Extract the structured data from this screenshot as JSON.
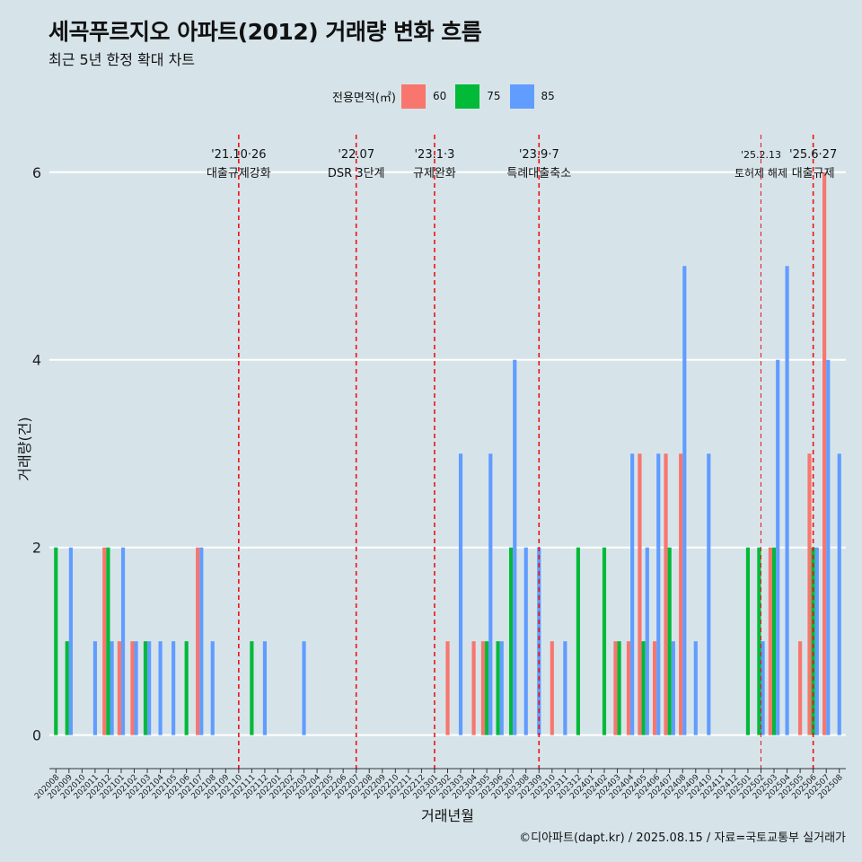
{
  "chart_data": {
    "type": "bar",
    "title": "세곡푸르지오 아파트(2012) 거래량 변화 흐름",
    "subtitle": "최근 5년 한정 확대 차트",
    "xlabel": "거래년월",
    "ylabel": "거래량(건)",
    "ylim": [
      -0.3,
      6.4
    ],
    "y_ticks": [
      0,
      2,
      4,
      6
    ],
    "grid": true,
    "legend": {
      "title": "전용면적(㎡)",
      "position": "top",
      "entries": [
        "60",
        "75",
        "85"
      ]
    },
    "series_colors": {
      "60": "#f8766d",
      "75": "#00ba38",
      "85": "#619cff"
    },
    "categories": [
      "202008",
      "202009",
      "202010",
      "202011",
      "202012",
      "202101",
      "202102",
      "202103",
      "202104",
      "202105",
      "202106",
      "202107",
      "202108",
      "202109",
      "202110",
      "202111",
      "202112",
      "202201",
      "202202",
      "202203",
      "202204",
      "202205",
      "202206",
      "202207",
      "202208",
      "202209",
      "202210",
      "202211",
      "202212",
      "202301",
      "202302",
      "202303",
      "202304",
      "202305",
      "202306",
      "202307",
      "202308",
      "202309",
      "202310",
      "202311",
      "202312",
      "202401",
      "202402",
      "202403",
      "202404",
      "202405",
      "202406",
      "202407",
      "202408",
      "202409",
      "202410",
      "202411",
      "202412",
      "202501",
      "202502",
      "202503",
      "202504",
      "202505",
      "202506",
      "202507",
      "202508"
    ],
    "series": [
      {
        "name": "60",
        "values": [
          0,
          0,
          0,
          0,
          2,
          1,
          1,
          0,
          0,
          0,
          0,
          2,
          0,
          0,
          0,
          0,
          0,
          0,
          0,
          0,
          0,
          0,
          0,
          0,
          0,
          0,
          0,
          0,
          0,
          0,
          1,
          0,
          1,
          1,
          0,
          0,
          0,
          0,
          1,
          0,
          0,
          0,
          0,
          1,
          1,
          3,
          1,
          3,
          3,
          0,
          0,
          0,
          0,
          0,
          0,
          2,
          0,
          1,
          3,
          6,
          0
        ]
      },
      {
        "name": "75",
        "values": [
          2,
          1,
          0,
          0,
          2,
          0,
          0,
          1,
          0,
          0,
          1,
          0,
          0,
          0,
          0,
          1,
          0,
          0,
          0,
          0,
          0,
          0,
          0,
          0,
          0,
          0,
          0,
          0,
          0,
          0,
          0,
          0,
          0,
          1,
          1,
          2,
          0,
          0,
          0,
          0,
          2,
          0,
          2,
          1,
          0,
          1,
          0,
          2,
          0,
          0,
          0,
          0,
          0,
          2,
          2,
          2,
          0,
          0,
          2,
          0,
          0
        ]
      },
      {
        "name": "85",
        "values": [
          0,
          2,
          0,
          1,
          1,
          2,
          1,
          1,
          1,
          1,
          0,
          2,
          1,
          0,
          0,
          0,
          1,
          0,
          0,
          1,
          0,
          0,
          0,
          0,
          0,
          0,
          0,
          0,
          0,
          0,
          0,
          3,
          0,
          3,
          1,
          4,
          2,
          2,
          0,
          1,
          0,
          0,
          0,
          0,
          3,
          2,
          3,
          1,
          5,
          1,
          3,
          0,
          0,
          0,
          1,
          4,
          5,
          0,
          2,
          4,
          3
        ]
      }
    ],
    "annotations": [
      {
        "category": "202110",
        "date": "'21.10·26",
        "label": "대출규제강화"
      },
      {
        "category": "202207",
        "date": "'22.07",
        "label": "DSR 3단계"
      },
      {
        "category": "202301",
        "date": "'23.1·3",
        "label": "규제완화"
      },
      {
        "category": "202309",
        "date": "'23.9·7",
        "label": "특례대출축소"
      },
      {
        "category": "202502",
        "date": "'25.2.13",
        "label": "토허제 해제"
      },
      {
        "category": "202506",
        "date": "'25.6·27",
        "label": "대출규제"
      }
    ]
  },
  "caption": "©디아파트(dapt.kr) / 2025.08.15 / 자료=국토교통부 실거래가"
}
